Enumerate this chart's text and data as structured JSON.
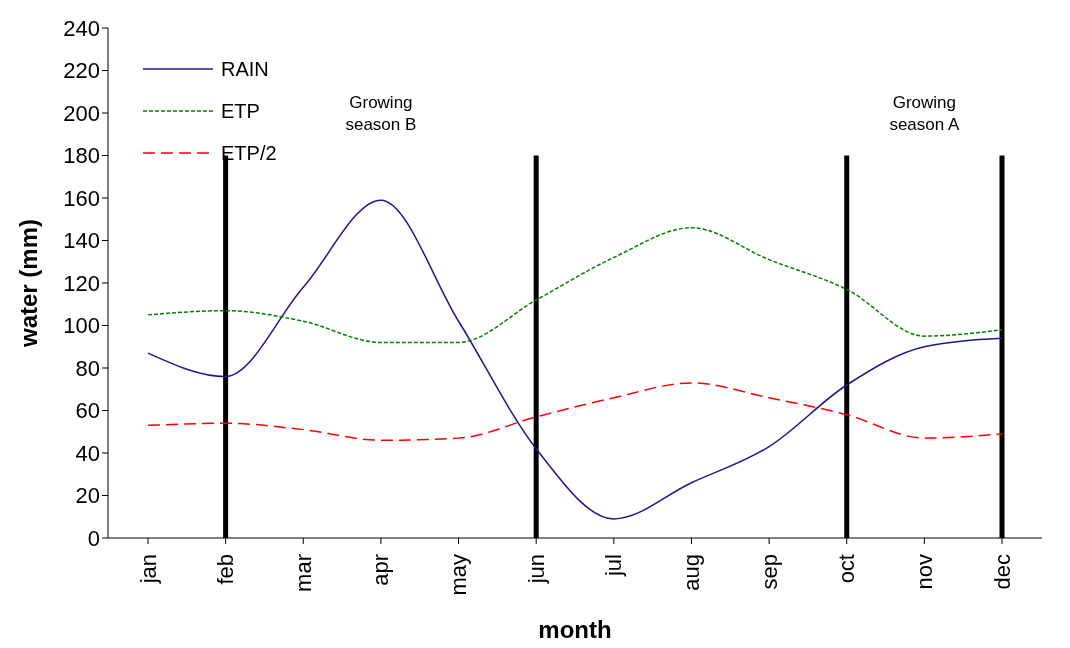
{
  "chart_data": {
    "type": "line",
    "xlabel": "month",
    "ylabel": "water (mm)",
    "categories": [
      "jan",
      "feb",
      "mar",
      "apr",
      "may",
      "jun",
      "jul",
      "aug",
      "sep",
      "oct",
      "nov",
      "dec"
    ],
    "ylim": [
      0,
      240
    ],
    "yticks": [
      0,
      20,
      40,
      60,
      80,
      100,
      120,
      140,
      160,
      180,
      200,
      220,
      240
    ],
    "grid": false,
    "legend": "top left",
    "marker": "none",
    "series": [
      {
        "name": "RAIN",
        "color": "#1a1a8c",
        "line_style": "solid",
        "values": [
          87,
          76,
          118,
          159,
          102,
          42,
          9,
          26,
          43,
          72,
          90,
          94
        ]
      },
      {
        "name": "ETP",
        "color": "#008000",
        "line_style": "dotted",
        "values": [
          105,
          107,
          102,
          92,
          92,
          112,
          132,
          146,
          131,
          117,
          95,
          98
        ]
      },
      {
        "name": "ETP/2",
        "color": "#ff0000",
        "line_style": "dashed",
        "values": [
          53,
          54,
          51,
          46,
          47,
          57,
          66,
          73,
          66,
          58,
          47,
          49
        ]
      }
    ],
    "ref_lines": [
      {
        "axis": "x",
        "value": "feb",
        "color": "#000000"
      },
      {
        "axis": "x",
        "value": "jun",
        "color": "#000000"
      },
      {
        "axis": "x",
        "value": "oct",
        "color": "#000000"
      },
      {
        "axis": "x",
        "value": "dec",
        "color": "#000000"
      }
    ],
    "annotations": [
      "Growing season B",
      "Growing season A"
    ]
  }
}
